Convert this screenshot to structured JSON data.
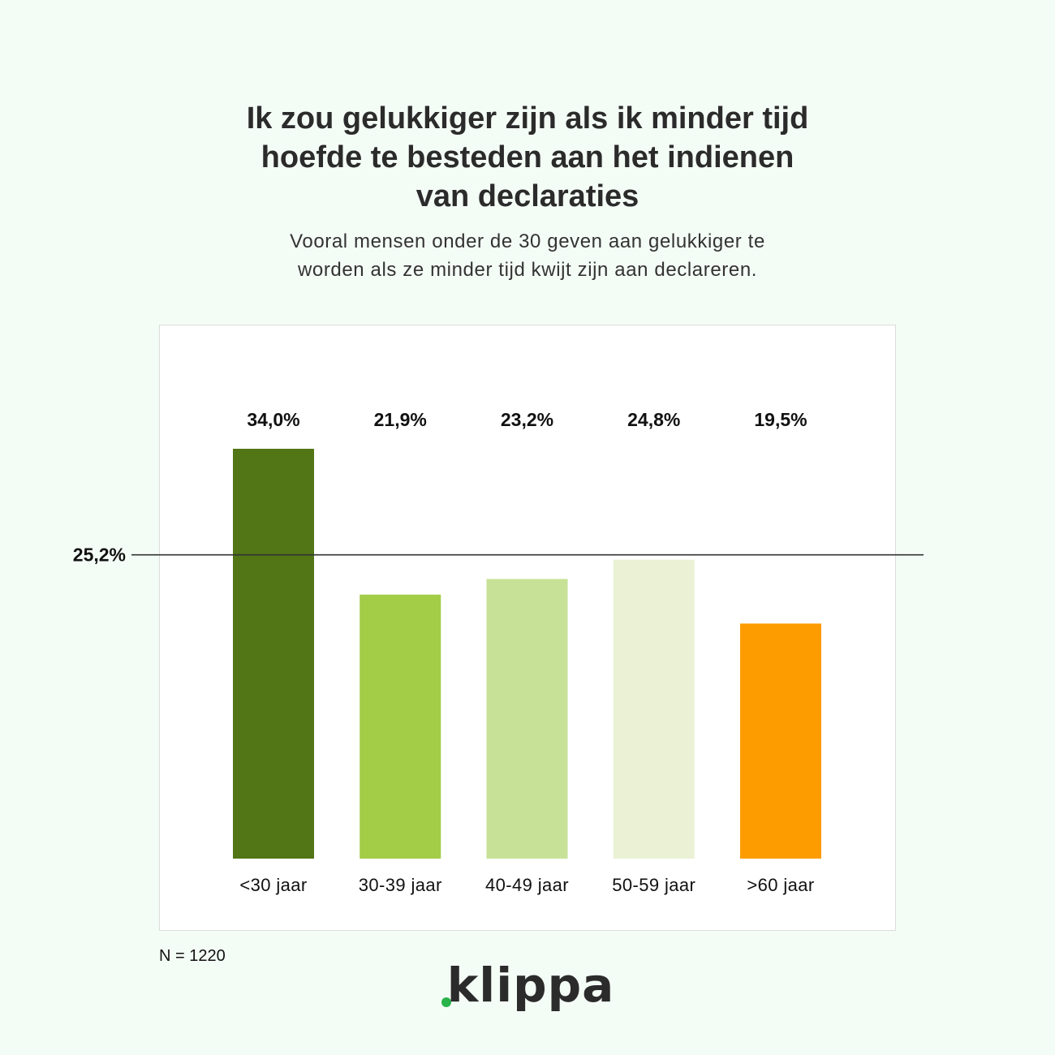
{
  "header": {
    "title_lines": [
      "Ik zou gelukkiger zijn als ik minder tijd",
      "hoefde te besteden aan het indienen",
      "van declaraties"
    ],
    "subtitle_lines": [
      "Vooral mensen onder de 30 geven aan gelukkiger te",
      "worden als ze minder tijd kwijt zijn aan declareren."
    ]
  },
  "chart_data": {
    "type": "bar",
    "categories": [
      "<30 jaar",
      "30-39 jaar",
      "40-49 jaar",
      "50-59 jaar",
      ">60 jaar"
    ],
    "values": [
      34.0,
      21.9,
      23.2,
      24.8,
      19.5
    ],
    "value_labels": [
      "34,0%",
      "21,9%",
      "23,2%",
      "24,8%",
      "19,5%"
    ],
    "colors": [
      "#527515",
      "#a3cc47",
      "#c7e196",
      "#eaf1d5",
      "#fd9c01"
    ],
    "reference_line": {
      "value": 25.2,
      "label": "25,2%",
      "color": "#333333"
    },
    "title": "Ik zou gelukkiger zijn als ik minder tijd hoefde te besteden aan het indienen van declaraties",
    "xlabel": "",
    "ylabel": "",
    "ylim": [
      0,
      34.0
    ],
    "grid": false,
    "legend": "none"
  },
  "footnote": "N = 1220",
  "logo": {
    "text": "klippa",
    "accent_color": "#2ab34a"
  }
}
